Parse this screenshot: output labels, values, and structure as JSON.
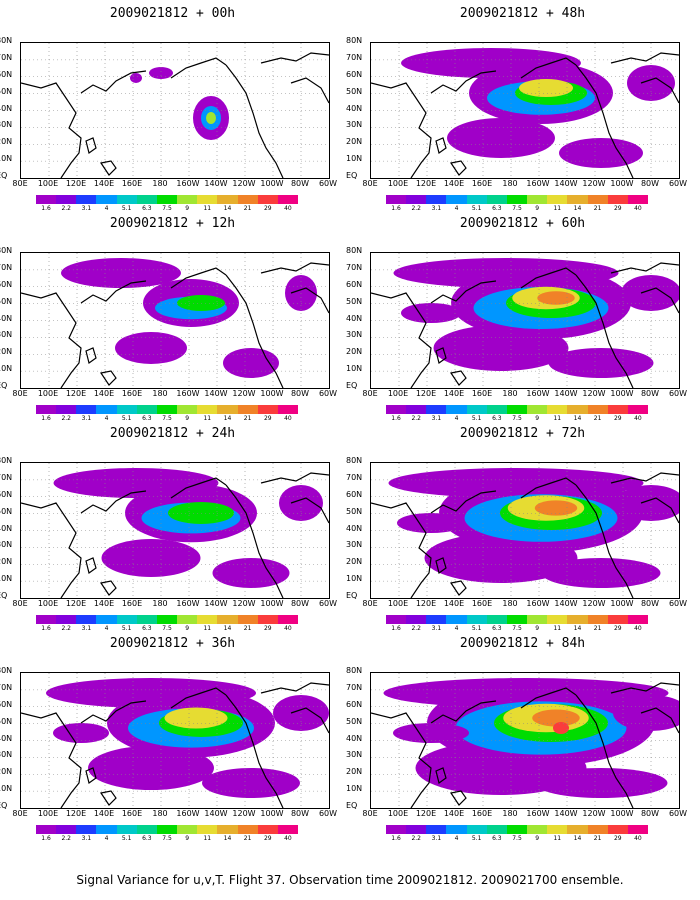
{
  "panels": [
    {
      "title": "2009021812 + 00h",
      "column": 0,
      "row": 0,
      "intensity": 0.25
    },
    {
      "title": "2009021812 + 12h",
      "column": 0,
      "row": 1,
      "intensity": 0.4
    },
    {
      "title": "2009021812 + 24h",
      "column": 0,
      "row": 2,
      "intensity": 0.55
    },
    {
      "title": "2009021812 + 36h",
      "column": 0,
      "row": 3,
      "intensity": 0.7
    },
    {
      "title": "2009021812 + 48h",
      "column": 1,
      "row": 0,
      "intensity": 0.6
    },
    {
      "title": "2009021812 + 60h",
      "column": 1,
      "row": 1,
      "intensity": 0.75
    },
    {
      "title": "2009021812 + 72h",
      "column": 1,
      "row": 2,
      "intensity": 0.85
    },
    {
      "title": "2009021812 + 84h",
      "column": 1,
      "row": 3,
      "intensity": 0.95
    }
  ],
  "lat_labels": [
    "80N",
    "70N",
    "60N",
    "50N",
    "40N",
    "30N",
    "20N",
    "10N",
    "EQ"
  ],
  "lon_labels": [
    "80E",
    "100E",
    "120E",
    "140E",
    "160E",
    "180",
    "160W",
    "140W",
    "120W",
    "100W",
    "80W",
    "60W"
  ],
  "colorbar": {
    "labels": [
      "1.6",
      "2.2",
      "3.1",
      "4",
      "5.1",
      "6.3",
      "7.5",
      "9",
      "11",
      "14",
      "21",
      "29",
      "40"
    ],
    "colors": [
      "#a000c8",
      "#8200dc",
      "#1e3cff",
      "#0096ff",
      "#00c8c8",
      "#00d28c",
      "#00dc00",
      "#a0e632",
      "#e6dc32",
      "#e6af2d",
      "#f08228",
      "#fa3c3c",
      "#f00082"
    ]
  },
  "caption": "Signal Variance for u,v,T. Flight 37. Observation time 2009021812. 2009021700 ensemble."
}
